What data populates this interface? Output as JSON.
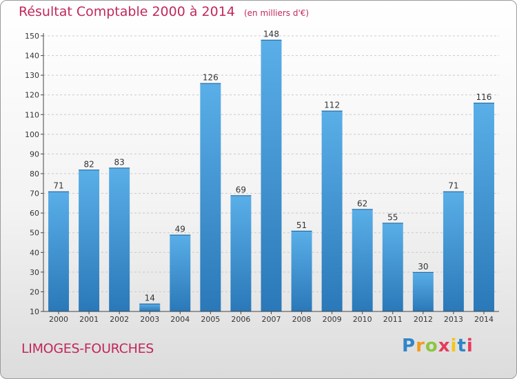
{
  "chart_data": {
    "type": "bar",
    "title": "Résultat Comptable 2000 à 2014",
    "subtitle": "(en milliers d'€)",
    "categories": [
      "2000",
      "2001",
      "2002",
      "2003",
      "2004",
      "2005",
      "2006",
      "2007",
      "2008",
      "2009",
      "2010",
      "2011",
      "2012",
      "2013",
      "2014"
    ],
    "values": [
      71,
      82,
      83,
      14,
      49,
      126,
      69,
      148,
      51,
      112,
      62,
      55,
      30,
      71,
      116
    ],
    "ylim": [
      10,
      150
    ],
    "yticks": [
      10,
      20,
      30,
      40,
      50,
      60,
      70,
      80,
      90,
      100,
      110,
      120,
      130,
      140,
      150
    ],
    "grid": true,
    "xlabel": "",
    "ylabel": ""
  },
  "commune": "LIMOGES-FOURCHES",
  "brand": {
    "letters": [
      "P",
      "r",
      "o",
      "x",
      "i",
      "t",
      "i"
    ],
    "colors": [
      "#2e86c8",
      "#f29b1d",
      "#8cc63f",
      "#e63a5c",
      "#f5c518",
      "#2e86c8",
      "#e63a5c"
    ]
  },
  "colors": {
    "bar_light": "#5aafe8",
    "bar_dark": "#2a78b8",
    "accent": "#c0285a"
  }
}
